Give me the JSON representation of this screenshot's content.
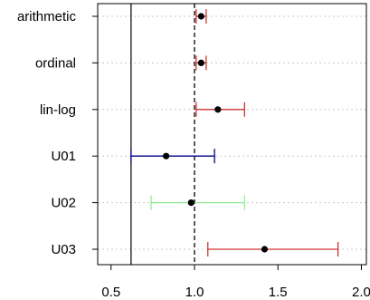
{
  "chart_data": {
    "type": "scatter",
    "style": "forest-plot",
    "categories": [
      "arithmetic",
      "ordinal",
      "lin-log",
      "U01",
      "U02",
      "U03"
    ],
    "points": [
      {
        "category": "arithmetic",
        "estimate": 1.04,
        "lower": 1.01,
        "upper": 1.07,
        "color": "#cd3333"
      },
      {
        "category": "ordinal",
        "estimate": 1.04,
        "lower": 1.01,
        "upper": 1.07,
        "color": "#cd3333"
      },
      {
        "category": "lin-log",
        "estimate": 1.14,
        "lower": 1.01,
        "upper": 1.3,
        "color": "#cd3333"
      },
      {
        "category": "U01",
        "estimate": 0.83,
        "lower": 0.62,
        "upper": 1.12,
        "color": "#00008b"
      },
      {
        "category": "U02",
        "estimate": 0.98,
        "lower": 0.74,
        "upper": 1.3,
        "color": "#90ee90"
      },
      {
        "category": "U03",
        "estimate": 1.42,
        "lower": 1.08,
        "upper": 1.86,
        "color": "#cd3333"
      }
    ],
    "x_ticks": [
      {
        "value": 0.5,
        "label": "0.5"
      },
      {
        "value": 1.0,
        "label": "1.0"
      },
      {
        "value": 1.5,
        "label": "1.5"
      },
      {
        "value": 2.0,
        "label": "2.0"
      }
    ],
    "xlim": [
      0.42,
      2.03
    ],
    "reference_line_solid": 0.62,
    "reference_line_dashed": 1.0,
    "grid": "horizontal-dotted",
    "title": "",
    "xlabel": "",
    "ylabel": ""
  }
}
